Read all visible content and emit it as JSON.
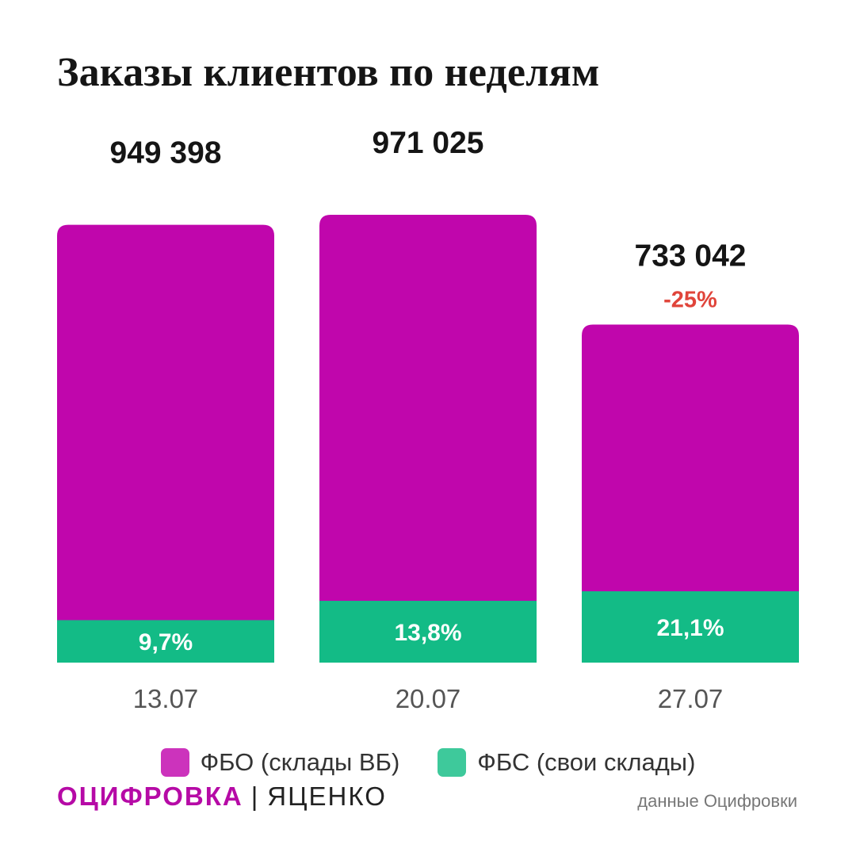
{
  "title": "Заказы клиентов по неделям",
  "chart_data": {
    "type": "bar",
    "stacked": true,
    "title": "Заказы клиентов по неделям",
    "categories": [
      "13.07",
      "20.07",
      "27.07"
    ],
    "totals": [
      949398,
      971025,
      733042
    ],
    "total_labels": [
      "949 398",
      "971 025",
      "733 042"
    ],
    "change_labels": [
      "",
      "",
      "-25%"
    ],
    "series": [
      {
        "name": "ФБО (склады ВБ)",
        "color": "#c006ac",
        "share_of_total": [
          0.903,
          0.862,
          0.789
        ]
      },
      {
        "name": "ФБС (свои склады)",
        "color": "#13bb86",
        "share_of_total": [
          0.097,
          0.138,
          0.211
        ],
        "labels": [
          "9,7%",
          "13,8%",
          "21,1%"
        ]
      }
    ],
    "ylim": [
      0,
      1100000
    ],
    "grid": false,
    "legend_position": "bottom",
    "colors": {
      "change_negative": "#e0443a",
      "total_label": "#151515",
      "category_label": "#555555"
    }
  },
  "legend": [
    {
      "label": "ФБО (склады ВБ)",
      "color": "#cc33bc"
    },
    {
      "label": "ФБС (свои склады)",
      "color": "#3ec99b"
    }
  ],
  "brand": {
    "main": "ОЦИФРОВКА",
    "separator": "|",
    "author": "ЯЦЕНКО"
  },
  "source": "данные Оцифровки"
}
